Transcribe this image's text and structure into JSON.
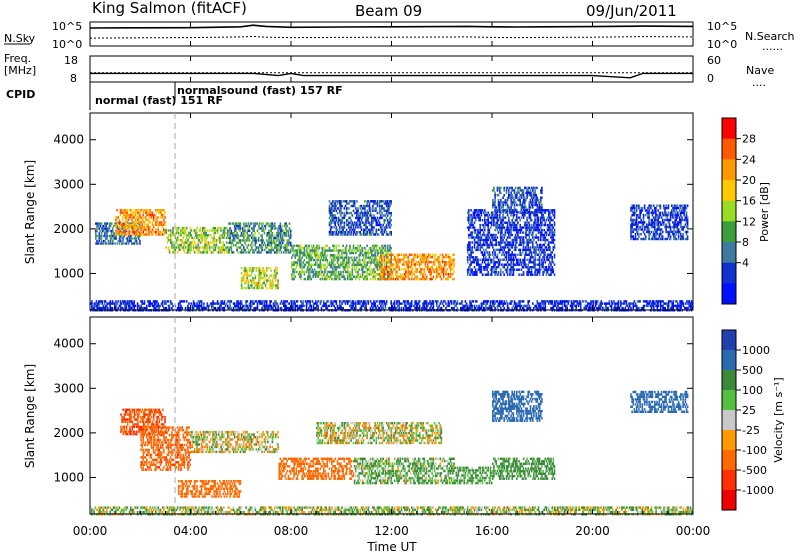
{
  "header": {
    "title": "King Salmon (fitACF)",
    "beam": "Beam 09",
    "date": "09/Jun/2011"
  },
  "noise_panel": {
    "left_label": "N.Sky",
    "right_label": "N.Search",
    "left_ticks": [
      "10^5",
      "10^0"
    ],
    "right_ticks": [
      "10^5",
      "10^0"
    ],
    "right_legend": "......"
  },
  "freq_panel": {
    "left_label_1": "Freq.",
    "left_label_2": "[MHz]",
    "left_ticks": [
      "18",
      "8"
    ],
    "right_label": "Nave",
    "right_ticks": [
      "60",
      "0"
    ],
    "right_legend": "...."
  },
  "cpid": {
    "label": "CPID",
    "mode1": "normal (fast) 151 RF",
    "mode2": "normalsound (fast) 157 RF"
  },
  "power_panel": {
    "ylabel": "Slant Range [km]",
    "yticks": [
      "4000",
      "3000",
      "2000",
      "1000"
    ],
    "colorbar_label": "Power [dB]",
    "colorbar_ticks": [
      "28",
      "24",
      "20",
      "16",
      "12",
      "8",
      "4"
    ],
    "colorbar_colors": [
      "#ff0000",
      "#ff5a00",
      "#ff9a00",
      "#ffc800",
      "#99dd22",
      "#3a9e3a",
      "#3c7aa0",
      "#1030d0",
      "#0010ff"
    ]
  },
  "velocity_panel": {
    "ylabel": "Slant Range [km]",
    "yticks": [
      "4000",
      "3000",
      "2000",
      "1000"
    ],
    "colorbar_label": "Velocity [m s⁻¹]",
    "colorbar_ticks": [
      "1000",
      "500",
      "100",
      "25",
      "-25",
      "-100",
      "-500",
      "-1000"
    ],
    "colorbar_colors": [
      "#2040b0",
      "#2a6ab0",
      "#3a8a3a",
      "#55c040",
      "#c8c8c8",
      "#ff9a00",
      "#ff6a00",
      "#ff3000",
      "#ee0000"
    ]
  },
  "xaxis": {
    "ticks": [
      "00:00",
      "04:00",
      "08:00",
      "12:00",
      "16:00",
      "20:00",
      "00:00"
    ],
    "label": "Time UT"
  },
  "chart_data": [
    {
      "type": "line",
      "title": "King Salmon (fitACF)",
      "xlabel": "Time UT",
      "ylabel": "N.Sky / N.Search",
      "yscale": "log",
      "ylim": [
        "10^0",
        "10^5"
      ],
      "xlim": [
        0,
        24
      ],
      "x": [
        0,
        2,
        4,
        6,
        6.5,
        7,
        8,
        10,
        12,
        14,
        15,
        16,
        17,
        18,
        20,
        22,
        24
      ],
      "series": [
        {
          "name": "N.Sky",
          "values": [
            10000,
            11000,
            12000,
            20000,
            50000,
            25000,
            15000,
            18000,
            20000,
            22000,
            25000,
            20000,
            18000,
            20000,
            22000,
            30000,
            25000
          ]
        },
        {
          "name": "N.Search",
          "values": [
            30,
            35,
            40,
            60,
            80,
            50,
            40,
            45,
            50,
            55,
            60,
            45,
            40,
            45,
            50,
            70,
            60
          ]
        }
      ]
    },
    {
      "type": "line",
      "xlabel": "Time UT",
      "ylabel": "Freq. [MHz]",
      "ylim": [
        8,
        18
      ],
      "xlim": [
        0,
        24
      ],
      "x": [
        0,
        6.5,
        7.5,
        8,
        8.5,
        15,
        17,
        20,
        21.5,
        22,
        24
      ],
      "series": [
        {
          "name": "Freq.",
          "values": [
            11,
            11,
            10,
            11,
            10,
            10,
            10,
            10,
            9,
            11,
            11
          ]
        },
        {
          "name": "Nave",
          "values": [
            20,
            20,
            20,
            20,
            20,
            20,
            20,
            20,
            20,
            20,
            20
          ]
        }
      ]
    },
    {
      "type": "heatmap",
      "xlabel": "Time UT",
      "ylabel": "Slant Range [km]",
      "colorbar": "Power [dB]",
      "xlim": [
        0,
        24
      ],
      "ylim": [
        180,
        4600
      ],
      "cmin": 0,
      "cmax": 30,
      "scatter_regions": [
        {
          "t0": 0.2,
          "t1": 2.0,
          "r0": 1700,
          "r1": 2200,
          "value": 8
        },
        {
          "t0": 1.0,
          "t1": 3.0,
          "r0": 1900,
          "r1": 2500,
          "value": 22
        },
        {
          "t0": 3.0,
          "t1": 5.5,
          "r0": 1500,
          "r1": 2100,
          "value": 14
        },
        {
          "t0": 5.5,
          "t1": 8.0,
          "r0": 1500,
          "r1": 2200,
          "value": 10
        },
        {
          "t0": 6.0,
          "t1": 7.5,
          "r0": 700,
          "r1": 1200,
          "value": 16
        },
        {
          "t0": 8.0,
          "t1": 12.0,
          "r0": 900,
          "r1": 1700,
          "value": 12
        },
        {
          "t0": 11.5,
          "t1": 14.5,
          "r0": 900,
          "r1": 1500,
          "value": 22
        },
        {
          "t0": 9.5,
          "t1": 12.0,
          "r0": 1900,
          "r1": 2700,
          "value": 6
        },
        {
          "t0": 15.0,
          "t1": 18.5,
          "r0": 1000,
          "r1": 2500,
          "value": 4
        },
        {
          "t0": 16.0,
          "t1": 18.0,
          "r0": 2400,
          "r1": 3000,
          "value": 6
        },
        {
          "t0": 21.5,
          "t1": 23.8,
          "r0": 1800,
          "r1": 2600,
          "value": 5
        },
        {
          "t0": 0.0,
          "t1": 24.0,
          "r0": 200,
          "r1": 450,
          "value": 3
        }
      ]
    },
    {
      "type": "heatmap",
      "xlabel": "Time UT",
      "ylabel": "Slant Range [km]",
      "colorbar": "Velocity [m s-1]",
      "xlim": [
        0,
        24
      ],
      "ylim": [
        180,
        4600
      ],
      "cmin": -1000,
      "cmax": 1000,
      "scatter_regions": [
        {
          "t0": 1.2,
          "t1": 3.0,
          "r0": 2000,
          "r1": 2600,
          "value": -500
        },
        {
          "t0": 2.0,
          "t1": 4.0,
          "r0": 1200,
          "r1": 2200,
          "value": -400
        },
        {
          "t0": 3.5,
          "t1": 6.0,
          "r0": 600,
          "r1": 1000,
          "value": -250
        },
        {
          "t0": 4.0,
          "t1": 7.5,
          "r0": 1600,
          "r1": 2100,
          "value": 0
        },
        {
          "t0": 7.5,
          "t1": 10.5,
          "r0": 1000,
          "r1": 1500,
          "value": -300
        },
        {
          "t0": 10.5,
          "t1": 14.5,
          "r0": 900,
          "r1": 1500,
          "value": 100
        },
        {
          "t0": 14.5,
          "t1": 16.0,
          "r0": 900,
          "r1": 1300,
          "value": 150
        },
        {
          "t0": 16.0,
          "t1": 18.5,
          "r0": 1000,
          "r1": 1500,
          "value": 200
        },
        {
          "t0": 16.0,
          "t1": 18.0,
          "r0": 2300,
          "r1": 3000,
          "value": 700
        },
        {
          "t0": 9.0,
          "t1": 14.0,
          "r0": 1800,
          "r1": 2300,
          "value": 0
        },
        {
          "t0": 21.5,
          "t1": 23.8,
          "r0": 2500,
          "r1": 3000,
          "value": 800
        },
        {
          "t0": 0.0,
          "t1": 24.0,
          "r0": 200,
          "r1": 400,
          "value": 50
        }
      ]
    }
  ]
}
